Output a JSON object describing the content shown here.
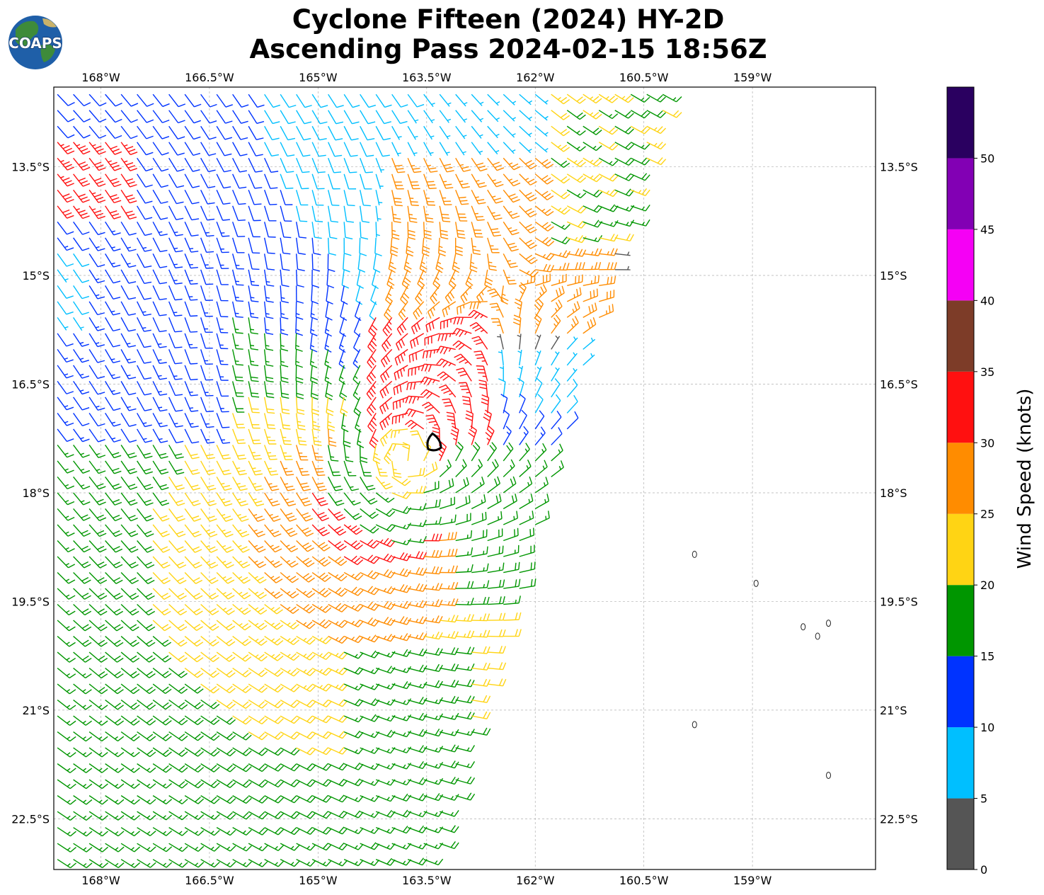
{
  "title": {
    "line1": "Cyclone Fifteen (2024) HY-2D",
    "line2": "Ascending Pass 2024-02-15 18:56Z"
  },
  "logo": {
    "text": "COAPS"
  },
  "map": {
    "lon_range": [
      -168.65,
      -157.3
    ],
    "lat_range": [
      -23.2,
      -12.4
    ],
    "lon_ticks": [
      {
        "value": -168.0,
        "label": "168°W"
      },
      {
        "value": -166.5,
        "label": "166.5°W"
      },
      {
        "value": -165.0,
        "label": "165°W"
      },
      {
        "value": -163.5,
        "label": "163.5°W"
      },
      {
        "value": -162.0,
        "label": "162°W"
      },
      {
        "value": -160.5,
        "label": "160.5°W"
      },
      {
        "value": -159.0,
        "label": "159°W"
      }
    ],
    "lat_ticks": [
      {
        "value": -13.5,
        "label": "13.5°S"
      },
      {
        "value": -15.0,
        "label": "15°S"
      },
      {
        "value": -16.5,
        "label": "16.5°S"
      },
      {
        "value": -18.0,
        "label": "18°S"
      },
      {
        "value": -19.5,
        "label": "19.5°S"
      },
      {
        "value": -21.0,
        "label": "21°S"
      },
      {
        "value": -22.5,
        "label": "22.5°S"
      }
    ],
    "gridlines": true,
    "storm_center": {
      "lon": -163.4,
      "lat": -17.3
    },
    "islands": [
      {
        "lon": -159.8,
        "lat": -18.85
      },
      {
        "lon": -158.95,
        "lat": -19.25
      },
      {
        "lon": -158.3,
        "lat": -19.85
      },
      {
        "lon": -157.95,
        "lat": -19.8
      },
      {
        "lon": -158.1,
        "lat": -19.98
      },
      {
        "lon": -159.8,
        "lat": -21.2
      },
      {
        "lon": -157.95,
        "lat": -21.9
      }
    ]
  },
  "colorbar": {
    "label": "Wind Speed (knots)",
    "ticks": [
      "0",
      "5",
      "10",
      "15",
      "20",
      "25",
      "30",
      "35",
      "40",
      "45",
      "50"
    ],
    "bins": [
      {
        "min": 0,
        "max": 5,
        "color": "#555555"
      },
      {
        "min": 5,
        "max": 10,
        "color": "#00bfff"
      },
      {
        "min": 10,
        "max": 15,
        "color": "#0033ff"
      },
      {
        "min": 15,
        "max": 20,
        "color": "#009600"
      },
      {
        "min": 20,
        "max": 25,
        "color": "#ffd414"
      },
      {
        "min": 25,
        "max": 30,
        "color": "#ff8c00"
      },
      {
        "min": 30,
        "max": 35,
        "color": "#ff1010"
      },
      {
        "min": 35,
        "max": 40,
        "color": "#7d3c28"
      },
      {
        "min": 40,
        "max": 45,
        "color": "#f500f5"
      },
      {
        "min": 45,
        "max": 50,
        "color": "#8200b4"
      },
      {
        "min": 50,
        "max": 55,
        "color": "#2a0060"
      }
    ]
  },
  "chart_data": {
    "type": "wind_barb_map",
    "title": "Cyclone Fifteen (2024) HY-2D — Ascending Pass 2024-02-15 18:56Z",
    "units": "knots",
    "swath_east_edge": [
      {
        "lat": -12.4,
        "lon": -160.1
      },
      {
        "lat": -23.2,
        "lon": -163.4
      }
    ],
    "wind_field": {
      "model": "cyclonic vortex (clockwise, Southern Hemisphere) embedded in southeasterly trades",
      "center": {
        "lon": -163.85,
        "lat": -17.6
      },
      "grid_spacing_deg": 0.22,
      "regions": [
        {
          "area": "storm center core",
          "speed_kt": "20-25"
        },
        {
          "area": "ring around center",
          "speed_kt": "15-20"
        },
        {
          "area": "northeast band near 163.5°W 16.5°S-17.5°S",
          "speed_kt": "30-35"
        },
        {
          "area": "northwest corner near 168°W 13.5°S",
          "speed_kt": "30-35"
        },
        {
          "area": "west side near 168°W 15°S-16.5°S",
          "speed_kt": "10-15"
        },
        {
          "area": "far west edge near 168.5°W 15°S",
          "speed_kt": "5-10"
        },
        {
          "area": "northern region",
          "speed_kt": "25-30"
        },
        {
          "area": "southern region",
          "speed_kt": "20-25"
        },
        {
          "area": "southeast band near 164°W 21°S",
          "speed_kt": "15-20"
        },
        {
          "area": "band near 165°W 19.5°S",
          "speed_kt": "25-30"
        }
      ]
    }
  }
}
